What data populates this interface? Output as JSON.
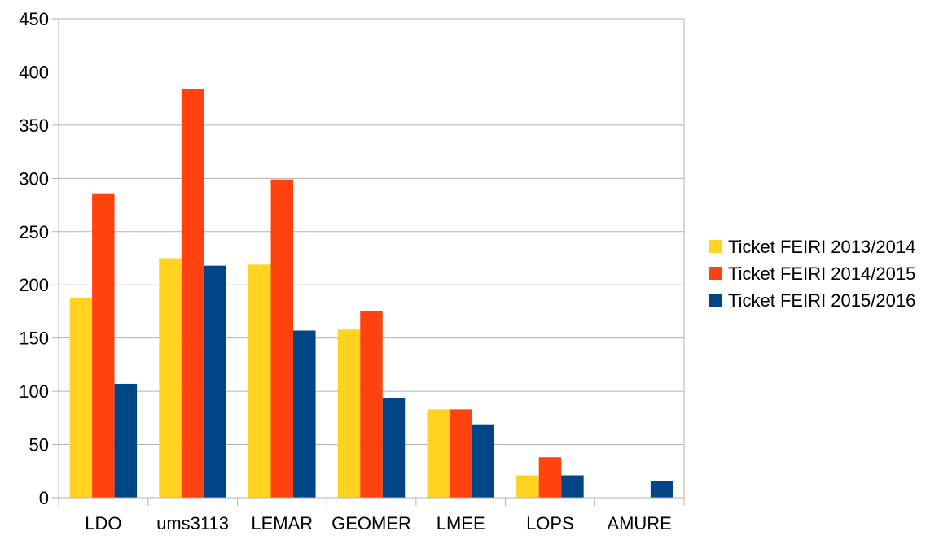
{
  "chart_data": {
    "type": "bar",
    "title": "",
    "xlabel": "",
    "ylabel": "",
    "ylim": [
      0,
      450
    ],
    "yticks": [
      0,
      50,
      100,
      150,
      200,
      250,
      300,
      350,
      400,
      450
    ],
    "grid": true,
    "legend_position": "right",
    "categories": [
      "LDO",
      "ums3113",
      "LEMAR",
      "GEOMER",
      "LMEE",
      "LOPS",
      "AMURE"
    ],
    "series": [
      {
        "name": "Ticket FEIRI 2013/2014",
        "color": "#ffd320",
        "values": [
          188,
          225,
          219,
          158,
          83,
          21,
          0
        ]
      },
      {
        "name": "Ticket FEIRI 2014/2015",
        "color": "#ff420e",
        "values": [
          286,
          384,
          299,
          175,
          83,
          38,
          0
        ]
      },
      {
        "name": "Ticket FEIRI 2015/2016",
        "color": "#004586",
        "values": [
          107,
          218,
          157,
          94,
          69,
          21,
          16
        ]
      }
    ]
  }
}
